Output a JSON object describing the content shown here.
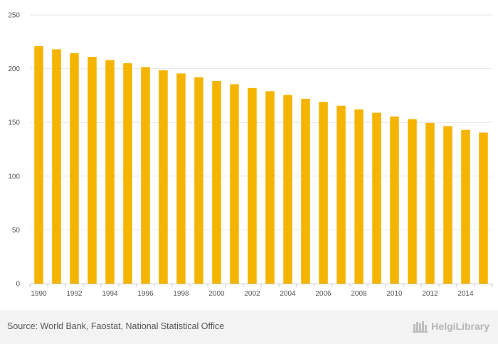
{
  "chart_data": {
    "type": "bar",
    "categories": [
      "1990",
      "1991",
      "1992",
      "1993",
      "1994",
      "1995",
      "1996",
      "1997",
      "1998",
      "1999",
      "2000",
      "2001",
      "2002",
      "2003",
      "2004",
      "2005",
      "2006",
      "2007",
      "2008",
      "2009",
      "2010",
      "2011",
      "2012",
      "2013",
      "2014",
      "2015"
    ],
    "x_tick_labels": [
      "1990",
      "1992",
      "1994",
      "1996",
      "1998",
      "2000",
      "2002",
      "2004",
      "2006",
      "2008",
      "2010",
      "2012",
      "2014"
    ],
    "values": [
      221,
      218,
      214.5,
      211,
      208,
      205,
      201.5,
      198.5,
      195.5,
      192,
      188.5,
      185.5,
      182,
      179,
      175.5,
      172,
      169,
      165.5,
      162,
      159,
      155.5,
      153,
      149.5,
      146.5,
      143,
      140.5
    ],
    "y_ticks": [
      0,
      50,
      100,
      150,
      200,
      250
    ],
    "ylim": [
      0,
      250
    ],
    "title": "",
    "xlabel": "",
    "ylabel": "",
    "grid": "horizontal",
    "bar_color": "#f5b400"
  },
  "footer": {
    "source": "Source: World Bank, Faostat, National Statistical Office",
    "brand": "HelgiLibrary"
  }
}
